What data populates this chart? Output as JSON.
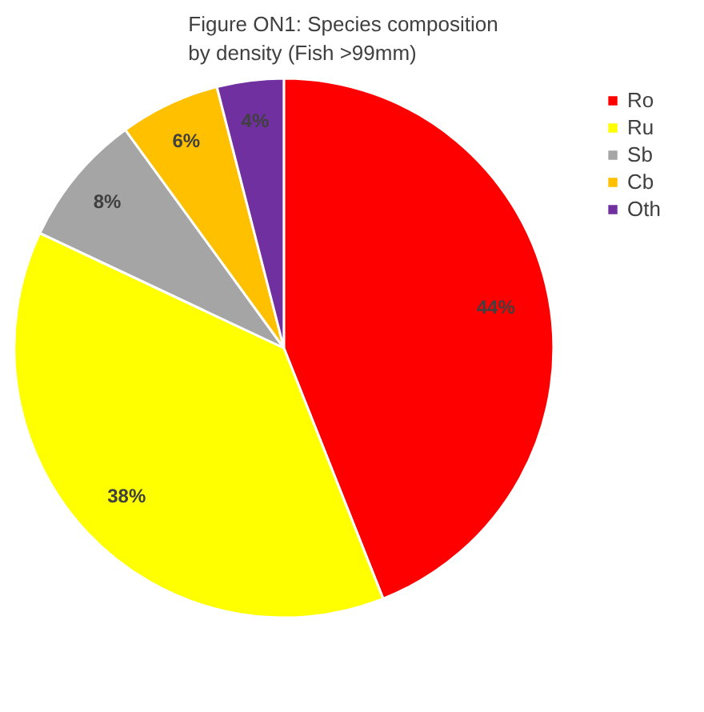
{
  "chart_data": {
    "type": "pie",
    "title": "Figure ON1: Species composition by density (Fish >99mm)",
    "categories": [
      "Ro",
      "Ru",
      "Sb",
      "Cb",
      "Oth"
    ],
    "values": [
      44,
      38,
      8,
      6,
      4
    ],
    "colors": [
      "#ff0000",
      "#ffff00",
      "#a5a5a5",
      "#ffc000",
      "#7030a0"
    ],
    "value_labels": [
      "44%",
      "38%",
      "8%",
      "6%",
      "4%"
    ],
    "legend": "top right"
  }
}
